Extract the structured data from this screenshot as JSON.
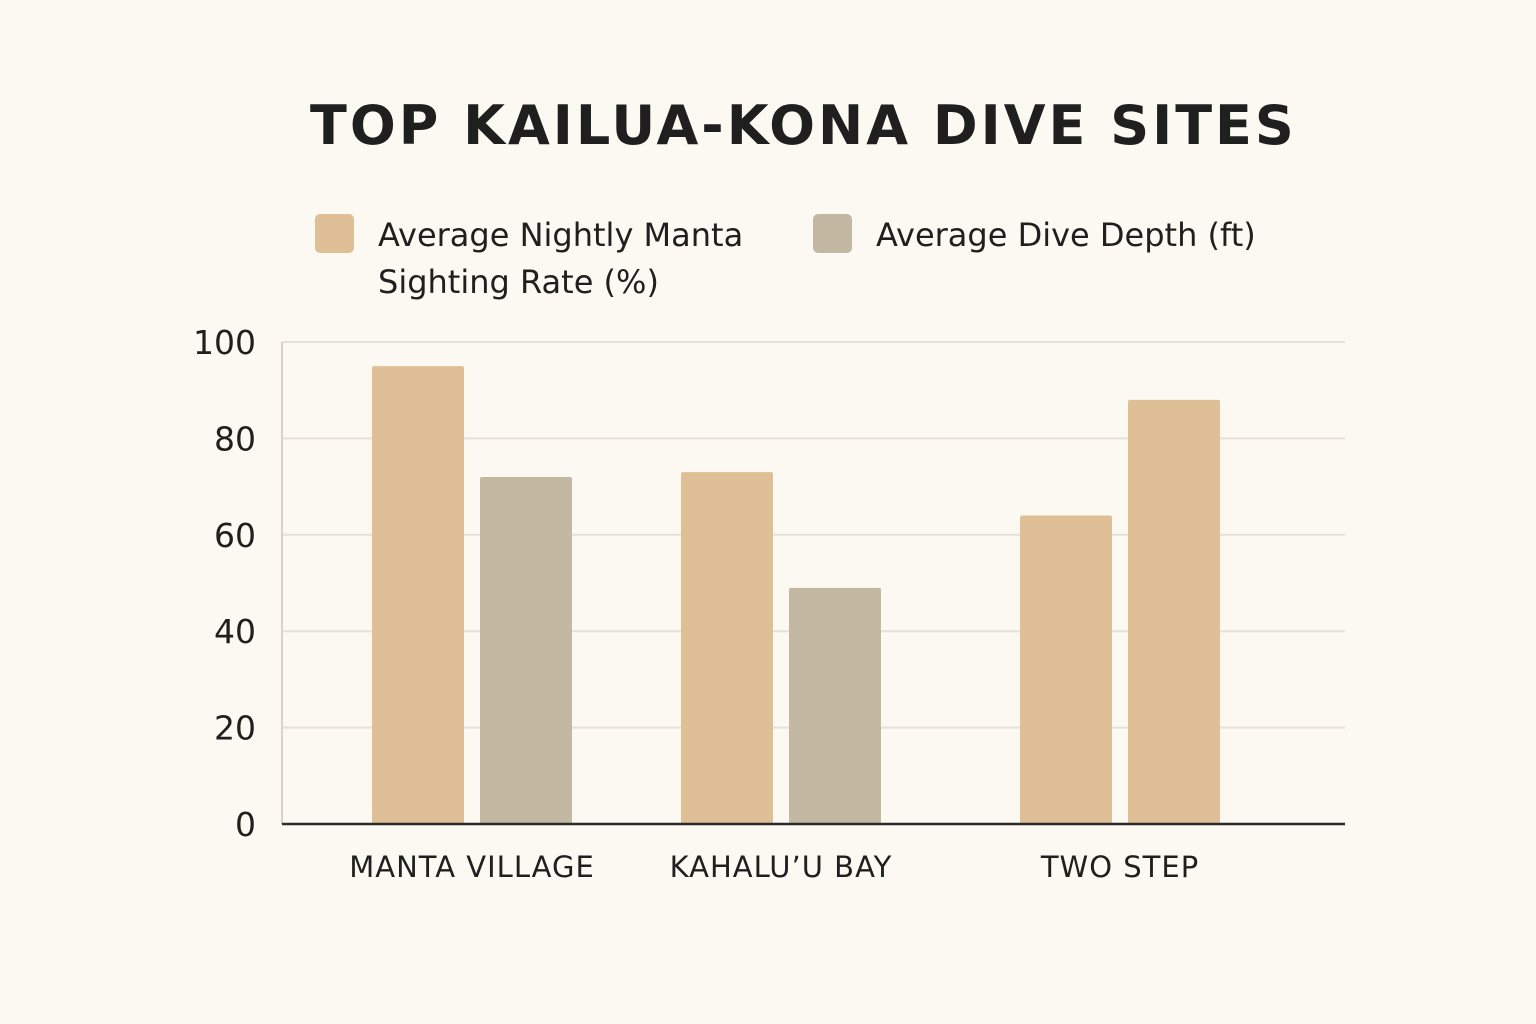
{
  "chart_data": {
    "type": "bar",
    "title": "TOP KAILUA-KONA DIVE SITES",
    "xlabel": "",
    "ylabel": "",
    "categories": [
      "MANTA VILLAGE",
      "KAHALU’U BAY",
      "TWO STEP"
    ],
    "series": [
      {
        "name": "Average Nightly Manta Sighting Rate (%)",
        "values": [
          95,
          73,
          64
        ],
        "color": "#dfbf95"
      },
      {
        "name": "Average Dive Depth (ft)",
        "values": [
          72,
          49,
          88
        ],
        "color": "#c3b8a1",
        "point_colors": [
          "#c3b8a1",
          "#c3b8a1",
          "#dfbf95"
        ]
      }
    ],
    "yticks": [
      0,
      20,
      40,
      60,
      80,
      100
    ],
    "ylim": [
      0,
      100
    ],
    "grid": true,
    "legend": "top",
    "colors": {
      "background": "#fcf8f2",
      "text": "#1f1f1f",
      "grid": "#e5e0d8",
      "axis": "#2b2b2b"
    }
  }
}
